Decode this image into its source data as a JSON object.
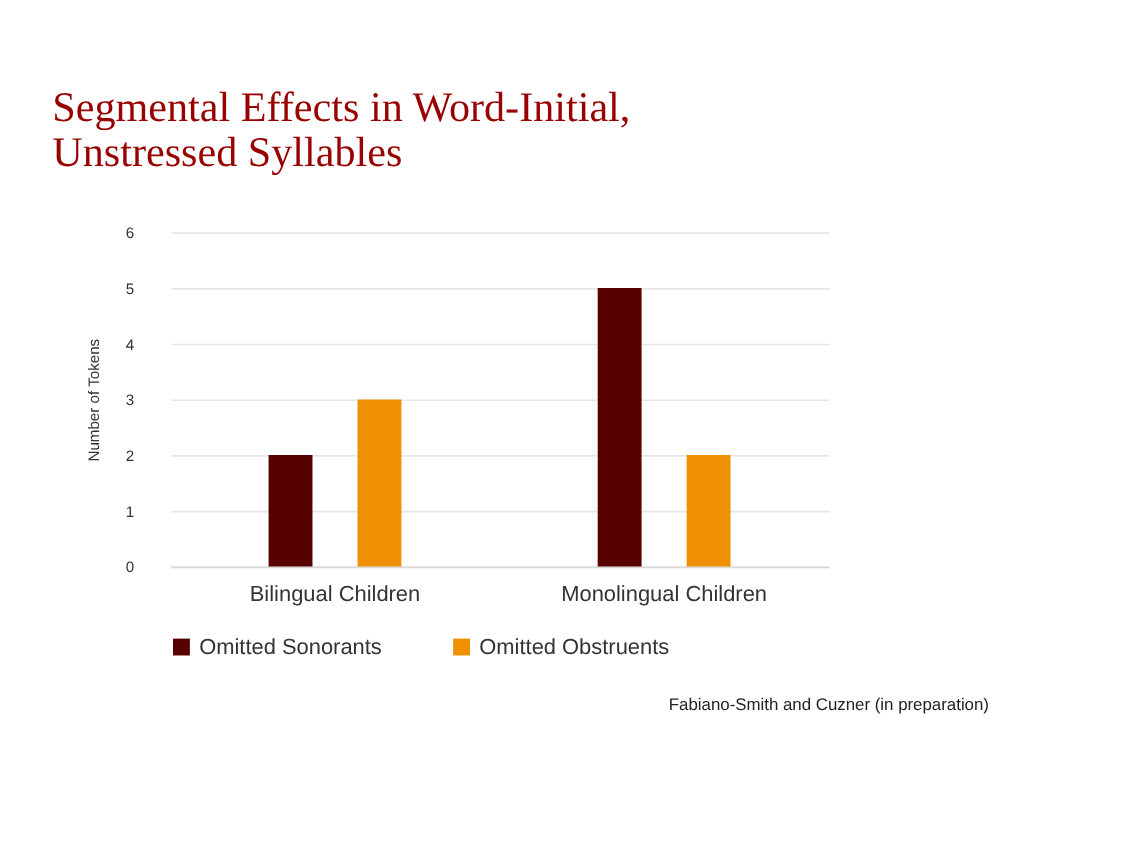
{
  "chart_data": {
    "type": "bar",
    "title": "Segmental Effects in Word-Initial, Unstressed Syllables",
    "ylabel": "Number of Tokens",
    "categories": [
      "Bilingual Children",
      "Monolingual Children"
    ],
    "series": [
      {
        "name": "Omitted Sonorants",
        "color": "#560000",
        "values": [
          2,
          5
        ]
      },
      {
        "name": "Omitted Obstruents",
        "color": "#ee9000",
        "values": [
          3,
          2
        ]
      }
    ],
    "ylim": [
      0,
      6
    ],
    "yticks": [
      0,
      1,
      2,
      3,
      4,
      5,
      6
    ],
    "grid": "y",
    "legend": "bottom",
    "annotations": [
      "Fabiano-Smith and Cuzner (in preparation)"
    ]
  }
}
